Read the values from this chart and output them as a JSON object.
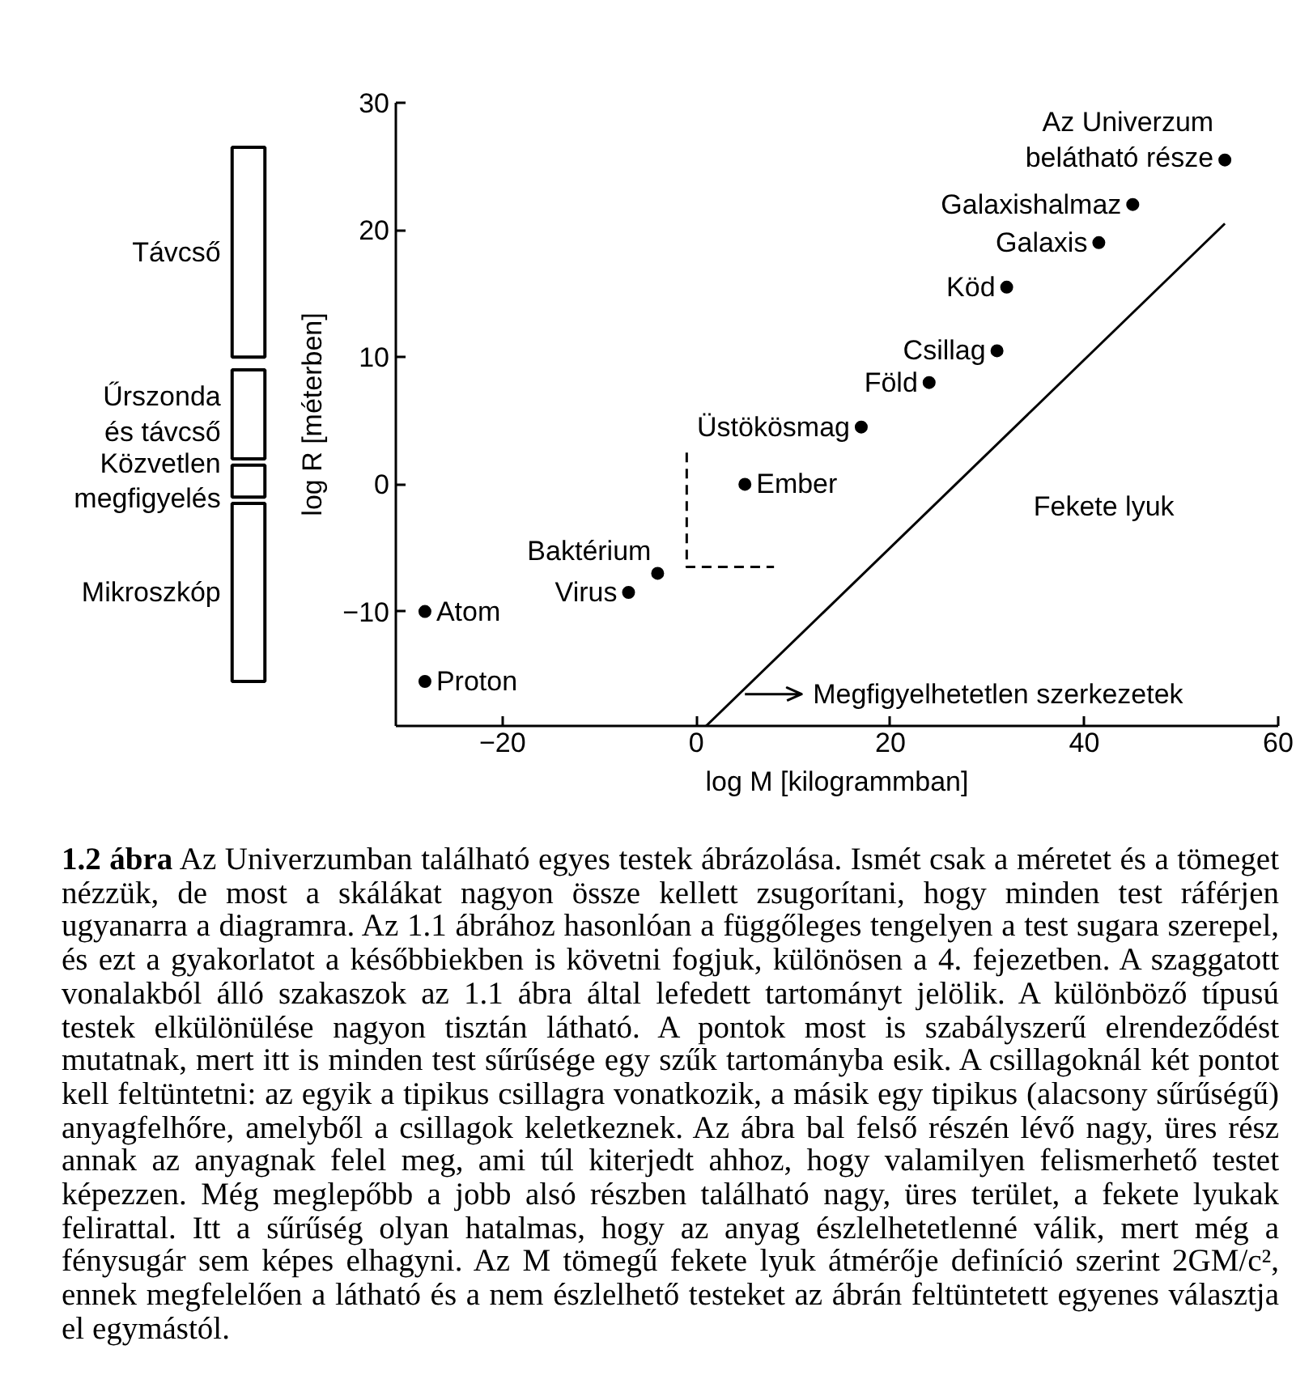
{
  "chart_data": [
    {
      "type": "bar",
      "categories": [
        null
      ],
      "ylim": [
        -19,
        30
      ],
      "tick_labels": false,
      "series": [
        {
          "name": "Távcső",
          "color": "#ffffff",
          "base": [
            10
          ],
          "values": [
            16.5
          ]
        },
        {
          "name": "Űrszonda\nés távcső",
          "color": "#ffffff",
          "base": [
            2
          ],
          "values": [
            7
          ]
        },
        {
          "name": "Közvetlen\nmegfigyelés",
          "color": "#ffffff",
          "base": [
            -1
          ],
          "values": [
            2.5
          ]
        },
        {
          "name": "Mikroszkóp",
          "color": "#ffffff",
          "base": [
            -15.5
          ],
          "values": [
            14
          ]
        }
      ]
    },
    {
      "type": "scatter",
      "title": "1.2 ábra Az Univerzumban található egyes testek ábrázolása.",
      "xlabel": "log M [kilogrammban]",
      "ylabel": "log R [méterben]",
      "xlim": [
        -31,
        60
      ],
      "ylim": [
        -19,
        30
      ],
      "xticks": [
        -20,
        0,
        20,
        40,
        60
      ],
      "yticks": [
        -10,
        0,
        10,
        20,
        30
      ],
      "marker": "circle",
      "series": [
        {
          "name": "Atom",
          "color": "#000000",
          "x": [
            -28
          ],
          "values": [
            -10
          ]
        },
        {
          "name": "Proton",
          "color": "#000000",
          "x": [
            -28
          ],
          "values": [
            -15.5
          ]
        },
        {
          "name": "Virus",
          "color": "#000000",
          "x": [
            -7
          ],
          "values": [
            -8.5
          ]
        },
        {
          "name": "Baktérium",
          "color": "#000000",
          "x": [
            -4
          ],
          "values": [
            -7
          ]
        },
        {
          "name": "Ember",
          "color": "#000000",
          "x": [
            5
          ],
          "values": [
            0
          ]
        },
        {
          "name": "Üstökösmag",
          "color": "#000000",
          "x": [
            17
          ],
          "values": [
            4.5
          ]
        },
        {
          "name": "Föld",
          "color": "#000000",
          "x": [
            24
          ],
          "values": [
            8
          ]
        },
        {
          "name": "Csillag",
          "color": "#000000",
          "x": [
            31
          ],
          "values": [
            10.5
          ]
        },
        {
          "name": "Köd",
          "color": "#000000",
          "x": [
            32
          ],
          "values": [
            15.5
          ]
        },
        {
          "name": "Galaxis",
          "color": "#000000",
          "x": [
            41.5
          ],
          "values": [
            19
          ]
        },
        {
          "name": "Galaxishalmaz",
          "color": "#000000",
          "x": [
            45
          ],
          "values": [
            22
          ]
        },
        {
          "name": "Az Univerzum\nbelátható része",
          "color": "#000000",
          "x": [
            54.5
          ],
          "values": [
            25.5
          ]
        },
        {
          "type": "line",
          "name": "Fekete lyuk",
          "color": "#000000",
          "marker": "none",
          "x": [
            1,
            54.5
          ],
          "values": [
            -19,
            20.5
          ]
        },
        {
          "type": "line",
          "color": "#000000",
          "marker": "none",
          "line_style": "dashed",
          "x": [
            -1,
            -1,
            8
          ],
          "values": [
            2.5,
            -6.5,
            -6.5
          ]
        }
      ],
      "annotations": [
        {
          "text": "Megfigyelhetetlen szerkezetek",
          "x": 5,
          "y": -16.5
        },
        "Ismét csak a méretet és a tömeget nézzük, de most a skálákat nagyon össze kellett zsugorítani, hogy minden test ráférjen ugyanarra a diagramra. Az 1.1 ábrához hasonlóan a függőleges tengelyen a test sugara szerepel, és ezt a gyakorlatot a későbbiekben is követni fogjuk, különösen a 4. fejezetben. A szaggatott vonalakból álló szakaszok az 1.1 ábra által lefedett tartományt jelölik. A különböző típusú testek elkülönülése nagyon tisztán látható. A pontok most is szabályszerű elrendeződést mutatnak, mert itt is minden test sűrűsége egy szűk tartományba esik. A csillagoknál két pontot kell feltüntetni: az egyik a tipikus csillagra vonatkozik, a másik egy tipikus (alacsony sűrűségű) anyagfelhőre, amelyből a csillagok keletkeznek. Az ábra bal felső részén lévő nagy, üres rész annak az anyagnak felel meg, ami túl kiterjedt ahhoz, hogy valamilyen felismerhető testet képezzen. Még meglepőbb a jobb alsó részben található nagy, üres terület, a fekete lyukak felirattal. Itt a sűrűség olyan hatalmas, hogy az anyag észlelhetetlenné válik, mert még a fénysugár sem képes elhagyni. Az M tömegű fekete lyuk átmérője definíció szerint 2GM/c², ennek megfelelően a látható és a nem észlelhető testeket az ábrán feltüntetett egyenes választja el egymástól."
      ]
    }
  ]
}
